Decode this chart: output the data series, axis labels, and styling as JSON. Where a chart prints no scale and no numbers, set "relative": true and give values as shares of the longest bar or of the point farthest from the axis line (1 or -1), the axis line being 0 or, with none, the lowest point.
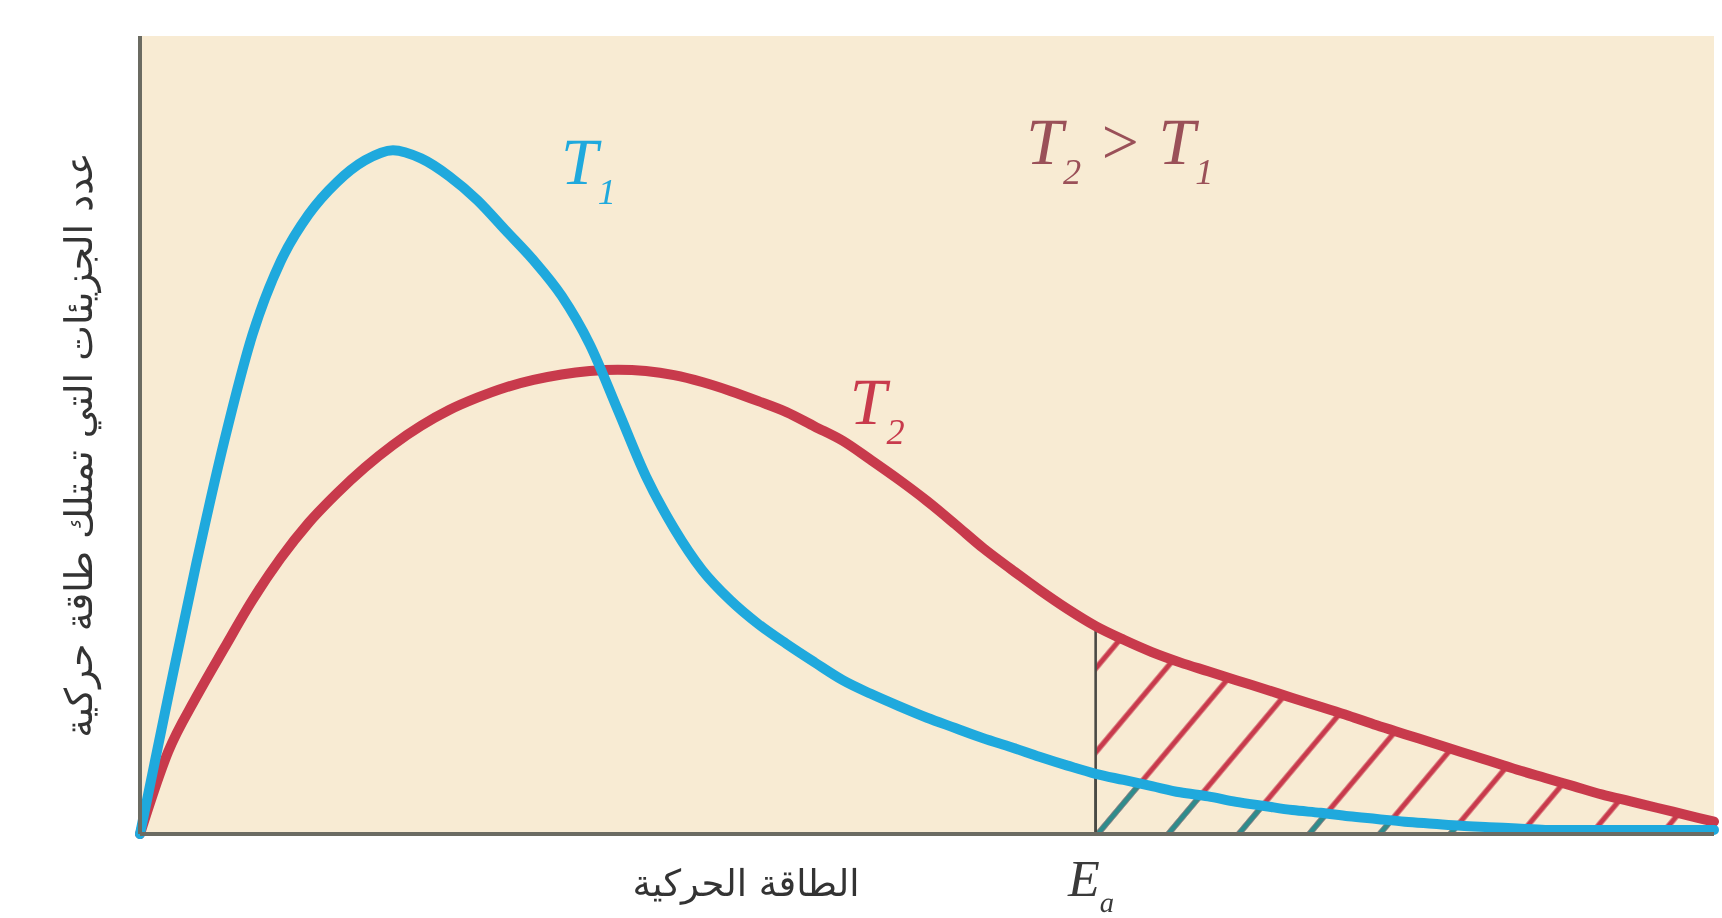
{
  "chart_data": {
    "type": "line",
    "relative": true,
    "xlabel": "الطاقة الحركية",
    "ylabel": "عدد الجزيئات التي تمتلك طاقة حركية",
    "categories": [
      null,
      null,
      null,
      null,
      null,
      null,
      null,
      null,
      null,
      null,
      null,
      null,
      null,
      null,
      null,
      null,
      null,
      null,
      null,
      null,
      null,
      null,
      null,
      null,
      null,
      null,
      null,
      null,
      null,
      null,
      null,
      null,
      null,
      null,
      null,
      null,
      null,
      null,
      null,
      null,
      null,
      null,
      null,
      null,
      null,
      null,
      null,
      null,
      null,
      null,
      null,
      null,
      null,
      null,
      null,
      null,
      null
    ],
    "series": [
      {
        "type": "area",
        "color": "#c83a4c",
        "values": [
          null,
          null,
          null,
          null,
          null,
          null,
          null,
          null,
          null,
          null,
          null,
          null,
          null,
          null,
          null,
          null,
          null,
          null,
          null,
          null,
          null,
          null,
          null,
          null,
          null,
          null,
          null,
          null,
          null,
          null,
          null,
          null,
          null,
          null,
          0.304,
          0.284,
          0.266,
          0.251,
          0.238,
          0.225,
          0.212,
          0.199,
          0.186,
          0.173,
          0.159,
          0.146,
          0.133,
          0.12,
          0.107,
          0.094,
          0.082,
          0.07,
          0.058,
          0.048,
          0.038,
          0.028,
          0.018
        ]
      },
      {
        "type": "area",
        "color": "#2e8c8c",
        "values": [
          null,
          null,
          null,
          null,
          null,
          null,
          null,
          null,
          null,
          null,
          null,
          null,
          null,
          null,
          null,
          null,
          null,
          null,
          null,
          null,
          null,
          null,
          null,
          null,
          null,
          null,
          null,
          null,
          null,
          null,
          null,
          null,
          null,
          null,
          0.088,
          0.079,
          0.07,
          0.061,
          0.055,
          0.047,
          0.041,
          0.035,
          0.031,
          0.026,
          0.022,
          0.018,
          0.015,
          0.012,
          0.01,
          0.008,
          0.006,
          0.006,
          0.006,
          0.006,
          0.006,
          0.006,
          0.006
        ]
      },
      {
        "name": "T$_{1}$",
        "color": "#1fa9dd",
        "values": [
          0,
          0.2,
          0.395,
          0.575,
          0.73,
          0.837,
          0.906,
          0.953,
          0.985,
          1,
          0.988,
          0.962,
          0.927,
          0.883,
          0.839,
          0.787,
          0.716,
          0.62,
          0.523,
          0.447,
          0.386,
          0.342,
          0.307,
          0.278,
          0.251,
          0.225,
          0.205,
          0.187,
          0.17,
          0.155,
          0.14,
          0.127,
          0.113,
          0.1,
          0.088,
          0.079,
          0.07,
          0.061,
          0.055,
          0.047,
          0.041,
          0.035,
          0.031,
          0.026,
          0.022,
          0.018,
          0.015,
          0.012,
          0.01,
          0.008,
          0.006,
          0.006,
          0.006,
          0.006,
          0.006,
          0.006,
          0.006
        ]
      },
      {
        "name": "T$_{2}$",
        "color": "#c83a4c",
        "values": [
          0,
          0.12,
          0.2,
          0.272,
          0.342,
          0.403,
          0.455,
          0.498,
          0.536,
          0.569,
          0.597,
          0.62,
          0.638,
          0.653,
          0.664,
          0.672,
          0.677,
          0.679,
          0.677,
          0.671,
          0.661,
          0.648,
          0.633,
          0.617,
          0.596,
          0.575,
          0.547,
          0.518,
          0.487,
          0.453,
          0.418,
          0.387,
          0.357,
          0.329,
          0.304,
          0.284,
          0.266,
          0.251,
          0.238,
          0.225,
          0.212,
          0.199,
          0.186,
          0.173,
          0.159,
          0.146,
          0.133,
          0.12,
          0.107,
          0.094,
          0.082,
          0.07,
          0.058,
          0.048,
          0.038,
          0.028,
          0.018
        ]
      }
    ],
    "annotations": [
      "T$_{2}$ > T$_{1}$",
      "E$_{a}$"
    ]
  }
}
